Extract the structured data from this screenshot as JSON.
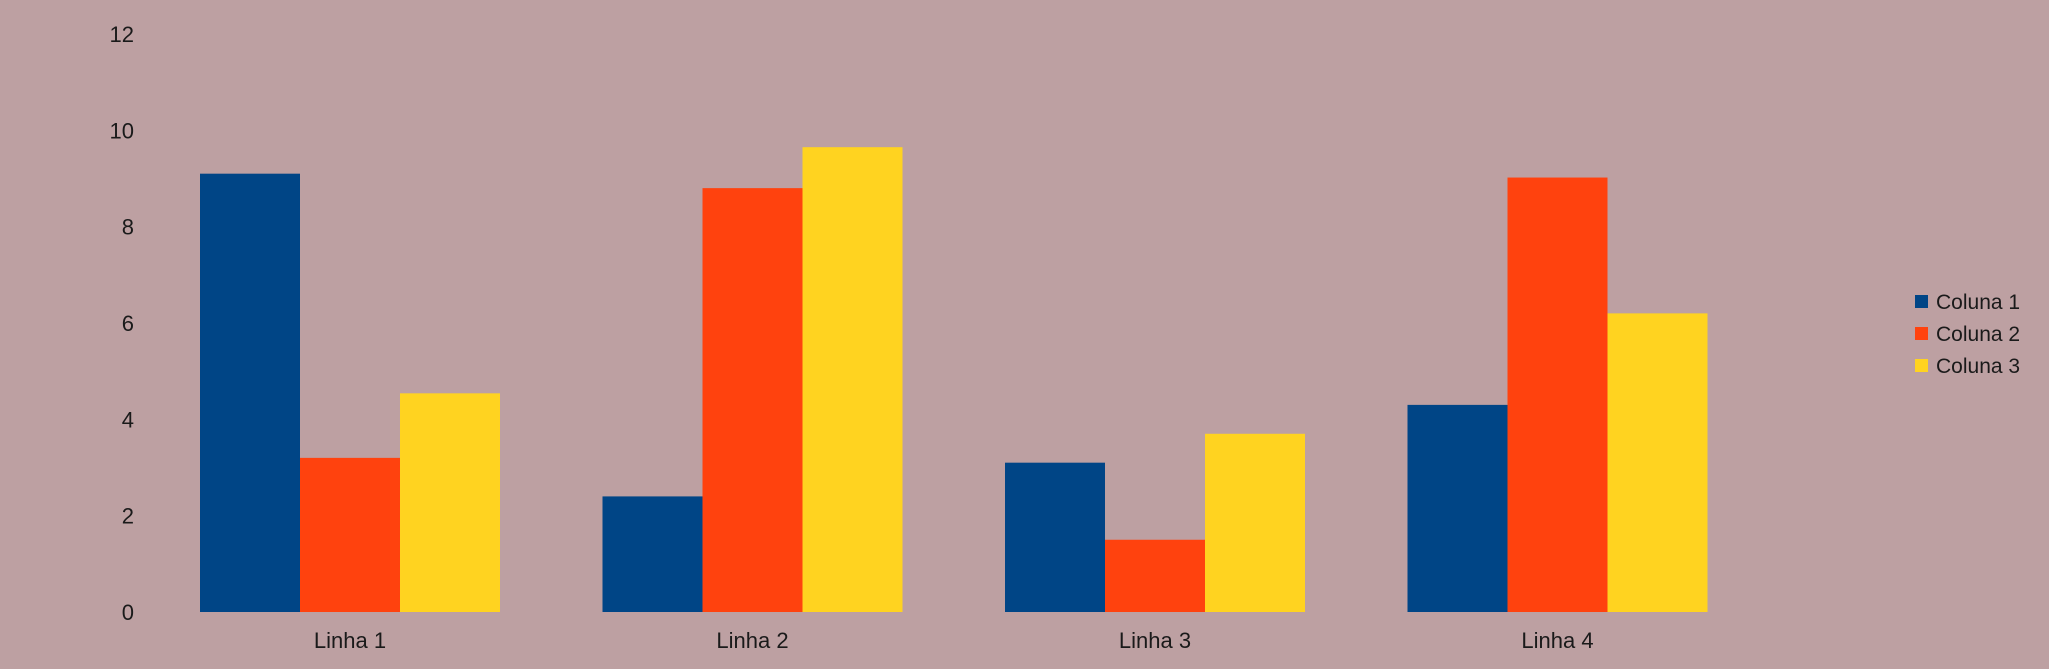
{
  "chart_data": {
    "type": "bar",
    "title": "",
    "xlabel": "",
    "ylabel": "",
    "categories": [
      "Linha 1",
      "Linha 2",
      "Linha 3",
      "Linha 4"
    ],
    "series": [
      {
        "name": "Coluna 1",
        "color": "#004586",
        "values": [
          9.1,
          2.4,
          3.1,
          4.3
        ]
      },
      {
        "name": "Coluna 2",
        "color": "#ff420e",
        "values": [
          3.2,
          8.8,
          1.5,
          9.02
        ]
      },
      {
        "name": "Coluna 3",
        "color": "#ffd320",
        "values": [
          4.54,
          9.65,
          3.7,
          6.2
        ]
      }
    ],
    "ylim": [
      0,
      12
    ],
    "yticks": [
      "0",
      "2",
      "4",
      "6",
      "8",
      "10",
      "12"
    ],
    "grid": false,
    "legend_position": "right",
    "background": "#bda0a2"
  }
}
